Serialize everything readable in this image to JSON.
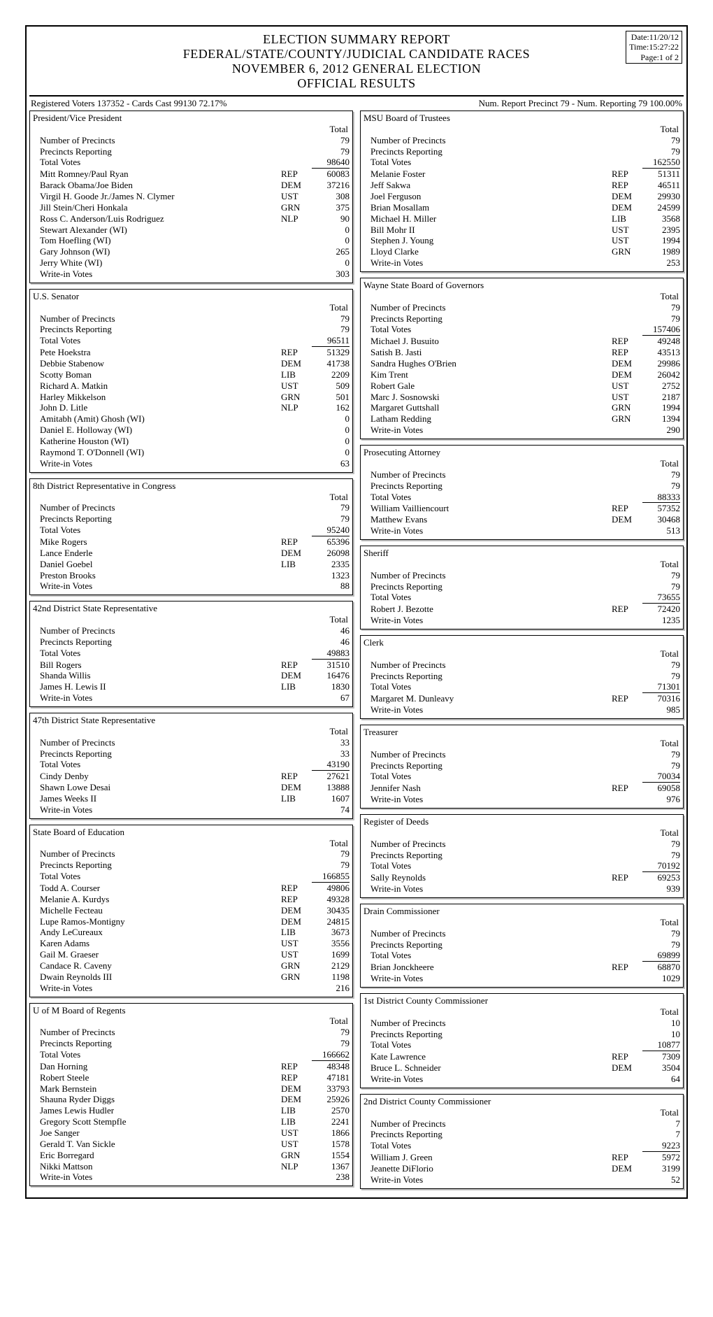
{
  "header": {
    "line1": "ELECTION SUMMARY REPORT",
    "line2": "FEDERAL/STATE/COUNTY/JUDICIAL CANDIDATE RACES",
    "line3": "NOVEMBER 6, 2012 GENERAL ELECTION",
    "line4": "OFFICIAL RESULTS",
    "meta_date": "Date:11/20/12",
    "meta_time": "Time:15:27:22",
    "meta_page": "Page:1 of 2"
  },
  "status": {
    "left": "Registered Voters 137352 - Cards Cast 99130    72.17%",
    "right": "Num. Report Precinct 79 - Num. Reporting 79    100.00%"
  },
  "labels": {
    "total": "Total",
    "num_precincts": "Number of Precincts",
    "precincts_reporting": "Precincts Reporting",
    "total_votes": "Total Votes",
    "write_in": "Write-in Votes"
  },
  "left_races": [
    {
      "title": "President/Vice President",
      "precincts": "79",
      "reporting": "79",
      "total_votes": "98640",
      "rows": [
        {
          "name": "Mitt Romney/Paul Ryan",
          "party": "REP",
          "val": "60083"
        },
        {
          "name": "Barack Obama/Joe Biden",
          "party": "DEM",
          "val": "37216"
        },
        {
          "name": "Virgil H. Goode Jr./James N. Clymer",
          "party": "UST",
          "val": "308"
        },
        {
          "name": "Jill Stein/Cheri Honkala",
          "party": "GRN",
          "val": "375"
        },
        {
          "name": "Ross C. Anderson/Luis Rodriguez",
          "party": "NLP",
          "val": "90"
        },
        {
          "name": "Stewart Alexander (WI)",
          "party": "",
          "val": "0"
        },
        {
          "name": "Tom Hoefling (WI)",
          "party": "",
          "val": "0"
        },
        {
          "name": "Gary Johnson (WI)",
          "party": "",
          "val": "265"
        },
        {
          "name": "Jerry White (WI)",
          "party": "",
          "val": "0"
        },
        {
          "name": "Write-in Votes",
          "party": "",
          "val": "303"
        }
      ]
    },
    {
      "title": "U.S. Senator",
      "precincts": "79",
      "reporting": "79",
      "total_votes": "96511",
      "rows": [
        {
          "name": "Pete Hoekstra",
          "party": "REP",
          "val": "51329"
        },
        {
          "name": "Debbie Stabenow",
          "party": "DEM",
          "val": "41738"
        },
        {
          "name": "Scotty Boman",
          "party": "LIB",
          "val": "2209"
        },
        {
          "name": "Richard A. Matkin",
          "party": "UST",
          "val": "509"
        },
        {
          "name": "Harley Mikkelson",
          "party": "GRN",
          "val": "501"
        },
        {
          "name": "John D. Litle",
          "party": "NLP",
          "val": "162"
        },
        {
          "name": "Amitabh (Amit) Ghosh (WI)",
          "party": "",
          "val": "0"
        },
        {
          "name": "Daniel E. Holloway (WI)",
          "party": "",
          "val": "0"
        },
        {
          "name": "Katherine Houston (WI)",
          "party": "",
          "val": "0"
        },
        {
          "name": "Raymond T. O'Donnell (WI)",
          "party": "",
          "val": "0"
        },
        {
          "name": "Write-in Votes",
          "party": "",
          "val": "63"
        }
      ]
    },
    {
      "title": "8th District Representative in Congress",
      "precincts": "79",
      "reporting": "79",
      "total_votes": "95240",
      "rows": [
        {
          "name": "Mike Rogers",
          "party": "REP",
          "val": "65396"
        },
        {
          "name": "Lance Enderle",
          "party": "DEM",
          "val": "26098"
        },
        {
          "name": "Daniel Goebel",
          "party": "LIB",
          "val": "2335"
        },
        {
          "name": "Preston Brooks",
          "party": "",
          "val": "1323"
        },
        {
          "name": "Write-in Votes",
          "party": "",
          "val": "88"
        }
      ]
    },
    {
      "title": "42nd District State Representative",
      "precincts": "46",
      "reporting": "46",
      "total_votes": "49883",
      "rows": [
        {
          "name": "Bill Rogers",
          "party": "REP",
          "val": "31510"
        },
        {
          "name": "Shanda Willis",
          "party": "DEM",
          "val": "16476"
        },
        {
          "name": "James H. Lewis II",
          "party": "LIB",
          "val": "1830"
        },
        {
          "name": "Write-in Votes",
          "party": "",
          "val": "67"
        }
      ]
    },
    {
      "title": "47th District State Representative",
      "precincts": "33",
      "reporting": "33",
      "total_votes": "43190",
      "rows": [
        {
          "name": "Cindy Denby",
          "party": "REP",
          "val": "27621"
        },
        {
          "name": "Shawn Lowe Desai",
          "party": "DEM",
          "val": "13888"
        },
        {
          "name": "James Weeks II",
          "party": "LIB",
          "val": "1607"
        },
        {
          "name": "Write-in Votes",
          "party": "",
          "val": "74"
        }
      ]
    },
    {
      "title": "State Board of Education",
      "precincts": "79",
      "reporting": "79",
      "total_votes": "166855",
      "rows": [
        {
          "name": "Todd A. Courser",
          "party": "REP",
          "val": "49806"
        },
        {
          "name": "Melanie A. Kurdys",
          "party": "REP",
          "val": "49328"
        },
        {
          "name": "Michelle Fecteau",
          "party": "DEM",
          "val": "30435"
        },
        {
          "name": "Lupe Ramos-Montigny",
          "party": "DEM",
          "val": "24815"
        },
        {
          "name": "Andy LeCureaux",
          "party": "LIB",
          "val": "3673"
        },
        {
          "name": "Karen Adams",
          "party": "UST",
          "val": "3556"
        },
        {
          "name": "Gail M. Graeser",
          "party": "UST",
          "val": "1699"
        },
        {
          "name": "Candace R. Caveny",
          "party": "GRN",
          "val": "2129"
        },
        {
          "name": "Dwain Reynolds III",
          "party": "GRN",
          "val": "1198"
        },
        {
          "name": "Write-in Votes",
          "party": "",
          "val": "216"
        }
      ]
    },
    {
      "title": "U of M Board of Regents",
      "precincts": "79",
      "reporting": "79",
      "total_votes": "166662",
      "rows": [
        {
          "name": "Dan Horning",
          "party": "REP",
          "val": "48348"
        },
        {
          "name": "Robert Steele",
          "party": "REP",
          "val": "47181"
        },
        {
          "name": "Mark Bernstein",
          "party": "DEM",
          "val": "33793"
        },
        {
          "name": "Shauna Ryder Diggs",
          "party": "DEM",
          "val": "25926"
        },
        {
          "name": "James Lewis Hudler",
          "party": "LIB",
          "val": "2570"
        },
        {
          "name": "Gregory Scott Stempfle",
          "party": "LIB",
          "val": "2241"
        },
        {
          "name": "Joe Sanger",
          "party": "UST",
          "val": "1866"
        },
        {
          "name": "Gerald T. Van Sickle",
          "party": "UST",
          "val": "1578"
        },
        {
          "name": "Eric Borregard",
          "party": "GRN",
          "val": "1554"
        },
        {
          "name": "Nikki Mattson",
          "party": "NLP",
          "val": "1367"
        },
        {
          "name": "Write-in Votes",
          "party": "",
          "val": "238"
        }
      ]
    }
  ],
  "right_races": [
    {
      "title": "MSU Board of Trustees",
      "precincts": "79",
      "reporting": "79",
      "total_votes": "162550",
      "rows": [
        {
          "name": "Melanie Foster",
          "party": "REP",
          "val": "51311"
        },
        {
          "name": "Jeff Sakwa",
          "party": "REP",
          "val": "46511"
        },
        {
          "name": "Joel Ferguson",
          "party": "DEM",
          "val": "29930"
        },
        {
          "name": "Brian Mosallam",
          "party": "DEM",
          "val": "24599"
        },
        {
          "name": "Michael H. Miller",
          "party": "LIB",
          "val": "3568"
        },
        {
          "name": "Bill Mohr II",
          "party": "UST",
          "val": "2395"
        },
        {
          "name": "Stephen J. Young",
          "party": "UST",
          "val": "1994"
        },
        {
          "name": "Lloyd Clarke",
          "party": "GRN",
          "val": "1989"
        },
        {
          "name": "Write-in Votes",
          "party": "",
          "val": "253"
        }
      ]
    },
    {
      "title": "Wayne State Board of Governors",
      "precincts": "79",
      "reporting": "79",
      "total_votes": "157406",
      "rows": [
        {
          "name": "Michael J. Busuito",
          "party": "REP",
          "val": "49248"
        },
        {
          "name": "Satish B. Jasti",
          "party": "REP",
          "val": "43513"
        },
        {
          "name": "Sandra Hughes O'Brien",
          "party": "DEM",
          "val": "29986"
        },
        {
          "name": "Kim Trent",
          "party": "DEM",
          "val": "26042"
        },
        {
          "name": "Robert Gale",
          "party": "UST",
          "val": "2752"
        },
        {
          "name": "Marc J. Sosnowski",
          "party": "UST",
          "val": "2187"
        },
        {
          "name": "Margaret Guttshall",
          "party": "GRN",
          "val": "1994"
        },
        {
          "name": "Latham Redding",
          "party": "GRN",
          "val": "1394"
        },
        {
          "name": "Write-in Votes",
          "party": "",
          "val": "290"
        }
      ]
    },
    {
      "title": "Prosecuting Attorney",
      "precincts": "79",
      "reporting": "79",
      "total_votes": "88333",
      "rows": [
        {
          "name": "William Vailliencourt",
          "party": "REP",
          "val": "57352"
        },
        {
          "name": "Matthew Evans",
          "party": "DEM",
          "val": "30468"
        },
        {
          "name": "Write-in Votes",
          "party": "",
          "val": "513"
        }
      ]
    },
    {
      "title": "Sheriff",
      "precincts": "79",
      "reporting": "79",
      "total_votes": "73655",
      "rows": [
        {
          "name": "Robert J. Bezotte",
          "party": "REP",
          "val": "72420"
        },
        {
          "name": "Write-in Votes",
          "party": "",
          "val": "1235"
        }
      ]
    },
    {
      "title": "Clerk",
      "precincts": "79",
      "reporting": "79",
      "total_votes": "71301",
      "rows": [
        {
          "name": "Margaret M. Dunleavy",
          "party": "REP",
          "val": "70316"
        },
        {
          "name": "Write-in Votes",
          "party": "",
          "val": "985"
        }
      ]
    },
    {
      "title": "Treasurer",
      "precincts": "79",
      "reporting": "79",
      "total_votes": "70034",
      "rows": [
        {
          "name": "Jennifer Nash",
          "party": "REP",
          "val": "69058"
        },
        {
          "name": "Write-in Votes",
          "party": "",
          "val": "976"
        }
      ]
    },
    {
      "title": "Register of Deeds",
      "precincts": "79",
      "reporting": "79",
      "total_votes": "70192",
      "rows": [
        {
          "name": "Sally Reynolds",
          "party": "REP",
          "val": "69253"
        },
        {
          "name": "Write-in Votes",
          "party": "",
          "val": "939"
        }
      ]
    },
    {
      "title": "Drain Commissioner",
      "precincts": "79",
      "reporting": "79",
      "total_votes": "69899",
      "rows": [
        {
          "name": "Brian Jonckheere",
          "party": "REP",
          "val": "68870"
        },
        {
          "name": "Write-in Votes",
          "party": "",
          "val": "1029"
        }
      ]
    },
    {
      "title": "1st District County Commissioner",
      "precincts": "10",
      "reporting": "10",
      "total_votes": "10877",
      "rows": [
        {
          "name": "Kate Lawrence",
          "party": "REP",
          "val": "7309"
        },
        {
          "name": "Bruce L. Schneider",
          "party": "DEM",
          "val": "3504"
        },
        {
          "name": "Write-in Votes",
          "party": "",
          "val": "64"
        }
      ]
    },
    {
      "title": "2nd District County Commissioner",
      "precincts": "7",
      "reporting": "7",
      "total_votes": "9223",
      "rows": [
        {
          "name": "William J. Green",
          "party": "REP",
          "val": "5972"
        },
        {
          "name": "Jeanette DiFlorio",
          "party": "DEM",
          "val": "3199"
        },
        {
          "name": "Write-in Votes",
          "party": "",
          "val": "52"
        }
      ]
    }
  ]
}
